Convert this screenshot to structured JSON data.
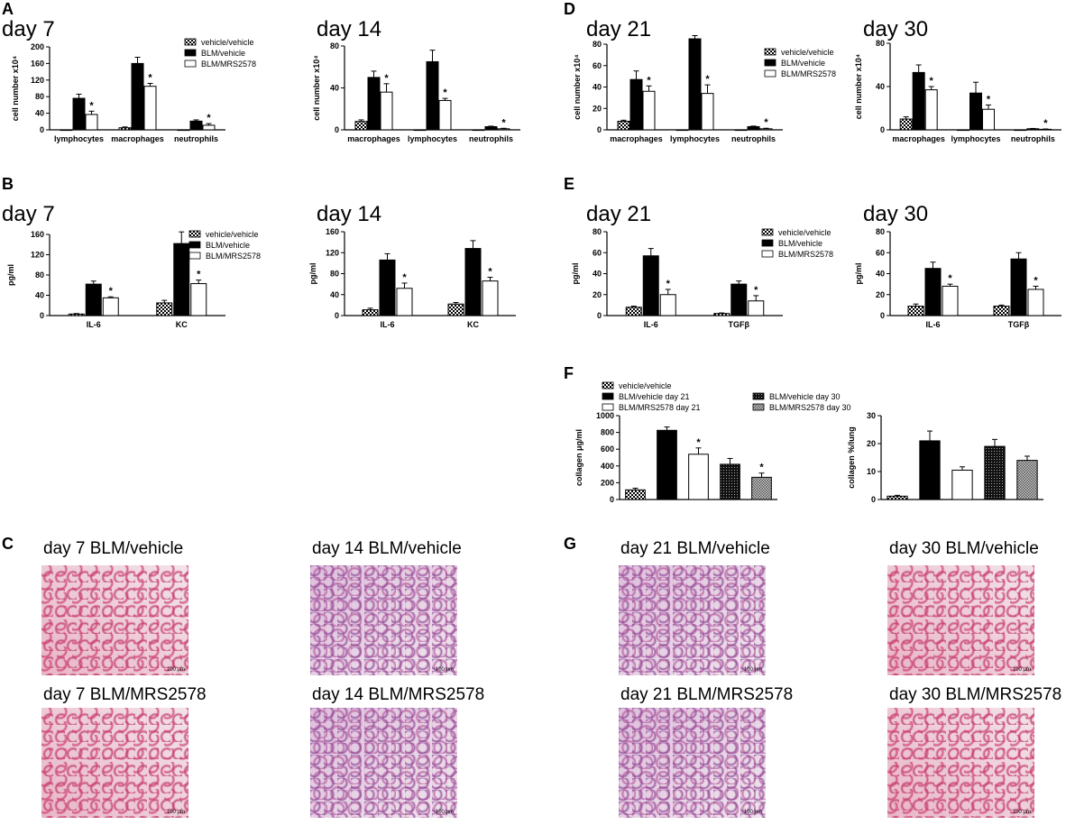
{
  "panel_letters": [
    "A",
    "B",
    "C",
    "D",
    "E",
    "F",
    "G"
  ],
  "day_titles": {
    "a1": "day 7",
    "a2": "day 14",
    "b1": "day 7",
    "b2": "day 14",
    "d1": "day 21",
    "d2": "day 30",
    "e1": "day 21",
    "e2": "day 30"
  },
  "chart_data": [
    {
      "id": "A-day7",
      "type": "bar",
      "title": "day 7",
      "ylabel": "cell number x10⁴",
      "ylim": [
        0,
        200
      ],
      "yticks": [
        "0",
        "40",
        "80",
        "120",
        "160",
        "200"
      ],
      "categories": [
        "lymphocytes",
        "macrophages",
        "neutrophils"
      ],
      "series": [
        {
          "name": "vehicle/vehicle",
          "values": [
            0,
            5,
            0
          ],
          "errors": [
            0,
            2,
            0
          ]
        },
        {
          "name": "BLM/vehicle",
          "values": [
            76,
            160,
            21
          ],
          "errors": [
            10,
            15,
            3
          ]
        },
        {
          "name": "BLM/MRS2578",
          "values": [
            37,
            105,
            11
          ],
          "errors": [
            8,
            7,
            4
          ]
        }
      ],
      "significant": [
        [
          false,
          false,
          false
        ],
        [
          false,
          false,
          false
        ],
        [
          true,
          true,
          true
        ]
      ]
    },
    {
      "id": "A-day14",
      "type": "bar",
      "title": "day 14",
      "ylabel": "cell number x10⁴",
      "ylim": [
        0,
        80
      ],
      "yticks": [
        "0",
        "40",
        "80"
      ],
      "categories": [
        "macrophages",
        "lymphocytes",
        "neutrophils"
      ],
      "series": [
        {
          "name": "vehicle/vehicle",
          "values": [
            8,
            0,
            0
          ],
          "errors": [
            1.5,
            0,
            0
          ]
        },
        {
          "name": "BLM/vehicle",
          "values": [
            50,
            65,
            3
          ],
          "errors": [
            6,
            11,
            0.5
          ]
        },
        {
          "name": "BLM/MRS2578",
          "values": [
            36,
            28,
            1
          ],
          "errors": [
            8,
            2,
            0.5
          ]
        }
      ],
      "significant": [
        [
          false,
          false,
          false
        ],
        [
          false,
          false,
          false
        ],
        [
          true,
          true,
          true
        ]
      ]
    },
    {
      "id": "D-day21",
      "type": "bar",
      "title": "day 21",
      "ylabel": "cell number x10⁴",
      "ylim": [
        0,
        80
      ],
      "yticks": [
        "0",
        "20",
        "40",
        "60",
        "80"
      ],
      "categories": [
        "macrophages",
        "lymphocytes",
        "neutrophils"
      ],
      "series": [
        {
          "name": "vehicle/vehicle",
          "values": [
            8,
            0,
            0
          ],
          "errors": [
            1,
            0,
            0
          ]
        },
        {
          "name": "BLM/vehicle",
          "values": [
            47,
            85,
            3
          ],
          "errors": [
            8,
            3,
            0.5
          ]
        },
        {
          "name": "BLM/MRS2578",
          "values": [
            36,
            34,
            1
          ],
          "errors": [
            5,
            8,
            0.5
          ]
        }
      ],
      "significant": [
        [
          false,
          false,
          false
        ],
        [
          false,
          false,
          false
        ],
        [
          true,
          true,
          true
        ]
      ]
    },
    {
      "id": "D-day30",
      "type": "bar",
      "title": "day 30",
      "ylabel": "cell number x10⁴",
      "ylim": [
        0,
        80
      ],
      "yticks": [
        "0",
        "40",
        "80"
      ],
      "categories": [
        "macrophages",
        "lymphocytes",
        "neutrophils"
      ],
      "series": [
        {
          "name": "vehicle/vehicle",
          "values": [
            10,
            0,
            0
          ],
          "errors": [
            2,
            0,
            0
          ]
        },
        {
          "name": "BLM/vehicle",
          "values": [
            53,
            34,
            1
          ],
          "errors": [
            7,
            10,
            0.3
          ]
        },
        {
          "name": "BLM/MRS2578",
          "values": [
            37,
            19,
            0.5
          ],
          "errors": [
            3,
            4,
            0.3
          ]
        }
      ],
      "significant": [
        [
          false,
          false,
          false
        ],
        [
          false,
          false,
          false
        ],
        [
          true,
          true,
          true
        ]
      ]
    },
    {
      "id": "B-day7",
      "type": "bar",
      "title": "day 7",
      "ylabel": "pg/ml",
      "ylim": [
        0,
        160
      ],
      "yticks": [
        "0",
        "40",
        "80",
        "120",
        "160"
      ],
      "categories": [
        "IL-6",
        "KC"
      ],
      "series": [
        {
          "name": "vehicle/vehicle",
          "values": [
            3,
            25
          ],
          "errors": [
            1,
            5
          ]
        },
        {
          "name": "BLM/vehicle",
          "values": [
            62,
            142
          ],
          "errors": [
            6,
            23
          ]
        },
        {
          "name": "BLM/MRS2578",
          "values": [
            35,
            63
          ],
          "errors": [
            2,
            7
          ]
        }
      ],
      "significant": [
        [
          false,
          false
        ],
        [
          false,
          false
        ],
        [
          true,
          true
        ]
      ]
    },
    {
      "id": "B-day14",
      "type": "bar",
      "title": "day 14",
      "ylabel": "pg/ml",
      "ylim": [
        0,
        160
      ],
      "yticks": [
        "0",
        "40",
        "80",
        "120",
        "160"
      ],
      "categories": [
        "IL-6",
        "KC"
      ],
      "series": [
        {
          "name": "vehicle/vehicle",
          "values": [
            11,
            22
          ],
          "errors": [
            3,
            3
          ]
        },
        {
          "name": "BLM/vehicle",
          "values": [
            106,
            128
          ],
          "errors": [
            12,
            15
          ]
        },
        {
          "name": "BLM/MRS2578",
          "values": [
            52,
            66
          ],
          "errors": [
            10,
            7
          ]
        }
      ],
      "significant": [
        [
          false,
          false
        ],
        [
          false,
          false
        ],
        [
          true,
          true
        ]
      ]
    },
    {
      "id": "E-day21",
      "type": "bar",
      "title": "day 21",
      "ylabel": "pg/ml",
      "ylim": [
        0,
        80
      ],
      "yticks": [
        "0",
        "20",
        "40",
        "60",
        "80"
      ],
      "categories": [
        "IL-6",
        "TGFβ"
      ],
      "series": [
        {
          "name": "vehicle/vehicle",
          "values": [
            8,
            2
          ],
          "errors": [
            1,
            0.5
          ]
        },
        {
          "name": "BLM/vehicle",
          "values": [
            57,
            30
          ],
          "errors": [
            7,
            3
          ]
        },
        {
          "name": "BLM/MRS2578",
          "values": [
            20,
            14
          ],
          "errors": [
            5,
            5
          ]
        }
      ],
      "significant": [
        [
          false,
          false
        ],
        [
          false,
          false
        ],
        [
          true,
          true
        ]
      ]
    },
    {
      "id": "E-day30",
      "type": "bar",
      "title": "day 30",
      "ylabel": "pg/ml",
      "ylim": [
        0,
        80
      ],
      "yticks": [
        "0",
        "20",
        "40",
        "60",
        "80"
      ],
      "categories": [
        "IL-6",
        "TGFβ"
      ],
      "series": [
        {
          "name": "vehicle/vehicle",
          "values": [
            9,
            9
          ],
          "errors": [
            2,
            1
          ]
        },
        {
          "name": "BLM/vehicle",
          "values": [
            45,
            54
          ],
          "errors": [
            6,
            6
          ]
        },
        {
          "name": "BLM/MRS2578",
          "values": [
            28,
            25
          ],
          "errors": [
            2,
            3
          ]
        }
      ],
      "significant": [
        [
          false,
          false
        ],
        [
          false,
          false
        ],
        [
          true,
          true
        ]
      ]
    },
    {
      "id": "F-collagen-ug",
      "type": "bar",
      "ylabel": "collagen μg/ml",
      "ylim": [
        0,
        1000
      ],
      "yticks": [
        "0",
        "200",
        "400",
        "600",
        "800",
        "1000"
      ],
      "categories": [
        "vehicle/vehicle",
        "BLM/vehicle day 21",
        "BLM/MRS2578 day 21",
        "BLM/vehicle day 30",
        "BLM/MRS2578 day 30"
      ],
      "values": [
        115,
        825,
        540,
        420,
        265
      ],
      "errors": [
        20,
        40,
        75,
        70,
        50
      ],
      "significant": [
        false,
        false,
        true,
        false,
        true
      ]
    },
    {
      "id": "F-collagen-percent",
      "type": "bar",
      "ylabel": "collagen %/lung",
      "ylim": [
        0,
        30
      ],
      "yticks": [
        "0",
        "10",
        "20",
        "30"
      ],
      "categories": [
        "vehicle/vehicle",
        "BLM/vehicle day 21",
        "BLM/MRS2578 day 21",
        "BLM/vehicle day 30",
        "BLM/MRS2578 day 30"
      ],
      "values": [
        1.2,
        21,
        10.5,
        19,
        14
      ],
      "errors": [
        0.3,
        3.5,
        1.2,
        2.5,
        1.5
      ],
      "significant": [
        false,
        false,
        false,
        false,
        false
      ]
    }
  ],
  "legend_abe": [
    "vehicle/vehicle",
    "BLM/vehicle",
    "BLM/MRS2578"
  ],
  "legend_f": [
    "vehicle/vehicle",
    "BLM/vehicle day 21",
    "BLM/MRS2578 day 21",
    "BLM/vehicle day 30",
    "BLM/MRS2578 day 30"
  ],
  "significance_marker": "*",
  "colors": {
    "black": "#000000",
    "white": "#ffffff",
    "checker": "#000000",
    "tissue_pink": "#d24a78",
    "tissue_purple": "#a45aa6",
    "background_light": "#efe6ec"
  },
  "micrographs": [
    {
      "label": "day 7 BLM/vehicle",
      "scale_label": "100 μm",
      "stain": "pink"
    },
    {
      "label": "day 14 BLM/vehicle",
      "scale_label": "100 μm",
      "stain": "purple"
    },
    {
      "label": "day 7 BLM/MRS2578",
      "scale_label": "100 μm",
      "stain": "pink"
    },
    {
      "label": "day 14 BLM/MRS2578",
      "scale_label": "100 μm",
      "stain": "purple"
    },
    {
      "label": "day 21 BLM/vehicle",
      "scale_label": "100 μm",
      "stain": "purple"
    },
    {
      "label": "day 30 BLM/vehicle",
      "scale_label": "100 μm",
      "stain": "pink"
    },
    {
      "label": "day 21 BLM/MRS2578",
      "scale_label": "100 μm",
      "stain": "purple"
    },
    {
      "label": "day 30 BLM/MRS2578",
      "scale_label": "100 μm",
      "stain": "pink"
    }
  ]
}
